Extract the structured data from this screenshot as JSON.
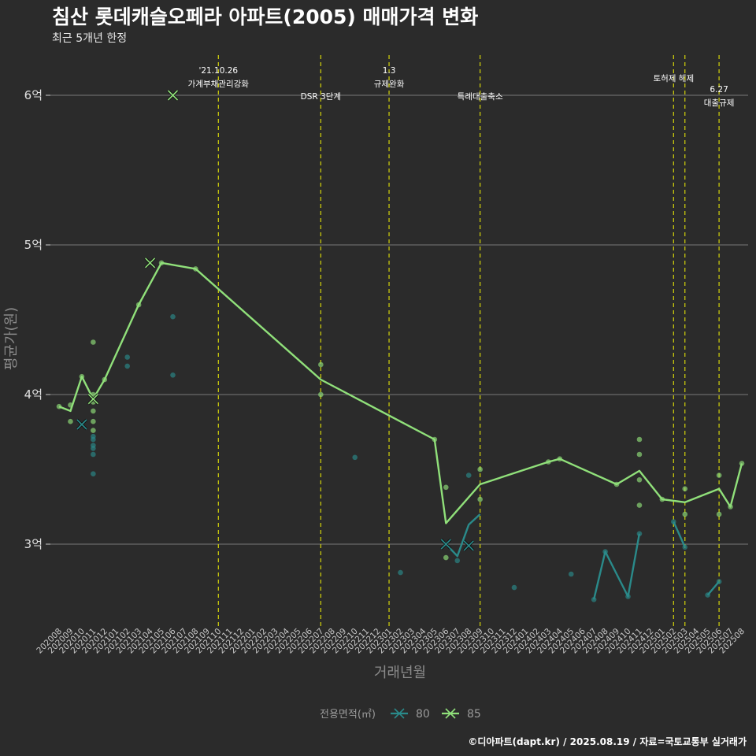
{
  "title": "침산 롯데캐슬오페라 아파트(2005) 매매가격 변화",
  "subtitle": "최근 5개년 한정",
  "caption": "©디아파트(dapt.kr) / 2025.08.19 / 자료=국토교통부 실거래가",
  "colors": {
    "background": "#2b2b2b",
    "grid": "#6a6a6a",
    "event_line": "#d4d40a",
    "series_80": "#2a8a8a",
    "series_85": "#90e07a"
  },
  "chart_data": {
    "type": "line",
    "xlabel": "거래년월",
    "ylabel": "평균가(원)",
    "ylim": [
      2.5,
      6.35
    ],
    "yticks": [
      {
        "value": 3,
        "label": "3억"
      },
      {
        "value": 4,
        "label": "4억"
      },
      {
        "value": 5,
        "label": "5억"
      },
      {
        "value": 6,
        "label": "6억"
      }
    ],
    "grid": "horizontal",
    "legend": {
      "title": "전용면적(㎡)",
      "position": "bottom"
    },
    "x_categories": [
      "202008",
      "202009",
      "202010",
      "202011",
      "202012",
      "202101",
      "202102",
      "202103",
      "202104",
      "202105",
      "202106",
      "202107",
      "202108",
      "202109",
      "202110",
      "202111",
      "202112",
      "202201",
      "202202",
      "202203",
      "202204",
      "202205",
      "202206",
      "202207",
      "202208",
      "202209",
      "202210",
      "202211",
      "202212",
      "202301",
      "202302",
      "202303",
      "202304",
      "202305",
      "202306",
      "202307",
      "202308",
      "202309",
      "202310",
      "202311",
      "202312",
      "202401",
      "202402",
      "202403",
      "202404",
      "202405",
      "202406",
      "202407",
      "202408",
      "202409",
      "202410",
      "202411",
      "202412",
      "202501",
      "202502",
      "202503",
      "202504",
      "202505",
      "202506",
      "202507",
      "202508"
    ],
    "events": [
      {
        "x": "202110",
        "lines": [
          "'21.10.26",
          "가계부채관리강화"
        ]
      },
      {
        "x": "202207",
        "lines": [
          "DSR 3단계"
        ]
      },
      {
        "x": "202301",
        "lines": [
          "1.3",
          "규제완화"
        ]
      },
      {
        "x": "202309",
        "lines": [
          "특례대출축소"
        ]
      },
      {
        "x": "202502",
        "lines": [
          "토허제 해제"
        ]
      },
      {
        "x": "202503",
        "lines": []
      },
      {
        "x": "202506",
        "lines": [
          "6.27",
          "대출규제"
        ]
      }
    ],
    "series": [
      {
        "name": "80",
        "color": "#2a8a8a",
        "segments": [
          [
            [
              "202306",
              3.0
            ],
            [
              "202307",
              2.92
            ],
            [
              "202308",
              3.13
            ],
            [
              "202309",
              3.2
            ]
          ],
          [
            [
              "202407",
              2.63
            ],
            [
              "202408",
              2.95
            ],
            [
              "202410",
              2.65
            ],
            [
              "202411",
              3.07
            ]
          ],
          [
            [
              "202502",
              3.15
            ],
            [
              "202503",
              2.98
            ]
          ],
          [
            [
              "202505",
              2.66
            ],
            [
              "202506",
              2.75
            ]
          ]
        ],
        "points": [
          [
            "202011",
            3.72
          ],
          [
            "202011",
            3.7
          ],
          [
            "202011",
            3.66
          ],
          [
            "202011",
            3.64
          ],
          [
            "202011",
            3.6
          ],
          [
            "202011",
            3.47
          ],
          [
            "202102",
            4.25
          ],
          [
            "202102",
            4.19
          ],
          [
            "202106",
            4.52
          ],
          [
            "202106",
            4.13
          ],
          [
            "202210",
            3.58
          ],
          [
            "202302",
            2.81
          ],
          [
            "202306",
            3.0
          ],
          [
            "202307",
            2.89
          ],
          [
            "202308",
            3.46
          ],
          [
            "202312",
            2.71
          ],
          [
            "202405",
            2.8
          ],
          [
            "202407",
            2.63
          ],
          [
            "202408",
            2.95
          ],
          [
            "202410",
            2.65
          ],
          [
            "202411",
            3.07
          ],
          [
            "202502",
            3.15
          ],
          [
            "202503",
            2.98
          ],
          [
            "202505",
            2.66
          ],
          [
            "202506",
            2.75
          ]
        ],
        "max_points": [
          [
            "202010",
            3.8
          ],
          [
            "202306",
            3.0
          ],
          [
            "202308",
            2.99
          ]
        ]
      },
      {
        "name": "85",
        "color": "#90e07a",
        "segments": [
          [
            [
              "202008",
              3.92
            ],
            [
              "202009",
              3.89
            ],
            [
              "202010",
              4.12
            ],
            [
              "202011",
              3.97
            ],
            [
              "202012",
              4.1
            ],
            [
              "202103",
              4.6
            ],
            [
              "202105",
              4.88
            ],
            [
              "202108",
              4.84
            ],
            [
              "202207",
              4.1
            ],
            [
              "202305",
              3.7
            ],
            [
              "202306",
              3.14
            ],
            [
              "202309",
              3.4
            ],
            [
              "202403",
              3.55
            ],
            [
              "202404",
              3.57
            ],
            [
              "202409",
              3.4
            ],
            [
              "202411",
              3.49
            ],
            [
              "202501",
              3.3
            ],
            [
              "202503",
              3.28
            ],
            [
              "202506",
              3.37
            ],
            [
              "202507",
              3.25
            ],
            [
              "202508",
              3.54
            ]
          ]
        ],
        "points": [
          [
            "202008",
            3.92
          ],
          [
            "202009",
            3.82
          ],
          [
            "202009",
            3.93
          ],
          [
            "202010",
            4.12
          ],
          [
            "202011",
            4.35
          ],
          [
            "202011",
            4.0
          ],
          [
            "202011",
            3.95
          ],
          [
            "202011",
            3.89
          ],
          [
            "202011",
            3.82
          ],
          [
            "202011",
            3.76
          ],
          [
            "202012",
            4.1
          ],
          [
            "202103",
            4.6
          ],
          [
            "202105",
            4.88
          ],
          [
            "202108",
            4.84
          ],
          [
            "202207",
            4.2
          ],
          [
            "202207",
            4.0
          ],
          [
            "202305",
            3.7
          ],
          [
            "202306",
            3.38
          ],
          [
            "202306",
            2.91
          ],
          [
            "202309",
            3.5
          ],
          [
            "202309",
            3.3
          ],
          [
            "202403",
            3.55
          ],
          [
            "202404",
            3.57
          ],
          [
            "202409",
            3.4
          ],
          [
            "202411",
            3.7
          ],
          [
            "202411",
            3.6
          ],
          [
            "202411",
            3.43
          ],
          [
            "202411",
            3.26
          ],
          [
            "202501",
            3.3
          ],
          [
            "202503",
            3.37
          ],
          [
            "202503",
            3.2
          ],
          [
            "202506",
            3.46
          ],
          [
            "202506",
            3.2
          ],
          [
            "202507",
            3.25
          ],
          [
            "202508",
            3.54
          ]
        ],
        "max_points": [
          [
            "202106",
            6.0
          ],
          [
            "202104",
            4.88
          ],
          [
            "202011",
            3.97
          ]
        ]
      }
    ]
  }
}
